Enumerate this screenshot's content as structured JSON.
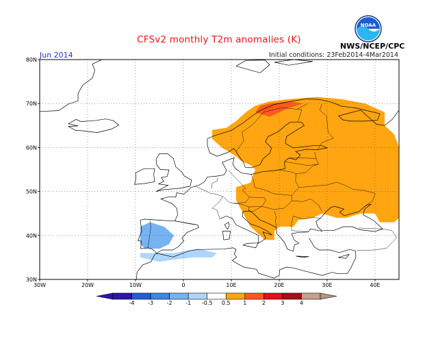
{
  "header": {
    "title": "CFSv2 monthly T2m anomalies (K)",
    "month": "Jun 2014",
    "initial_conditions": "Initial conditions: 23Feb2014-4Mar2014",
    "agency": "NWS/NCEP/CPC",
    "logo_text": "NOAA"
  },
  "map": {
    "lon_range": [
      -30,
      45
    ],
    "lat_range": [
      30,
      80
    ],
    "lon_ticks": [
      {
        "value": -30,
        "label": "30W"
      },
      {
        "value": -20,
        "label": "20W"
      },
      {
        "value": -10,
        "label": "10W"
      },
      {
        "value": 0,
        "label": "0"
      },
      {
        "value": 10,
        "label": "10E"
      },
      {
        "value": 20,
        "label": "20E"
      },
      {
        "value": 30,
        "label": "30E"
      },
      {
        "value": 40,
        "label": "40E"
      }
    ],
    "lat_ticks": [
      {
        "value": 30,
        "label": "30N"
      },
      {
        "value": 40,
        "label": "40N"
      },
      {
        "value": 50,
        "label": "50N"
      },
      {
        "value": 60,
        "label": "60N"
      },
      {
        "value": 70,
        "label": "70N"
      },
      {
        "value": 80,
        "label": "80N"
      }
    ]
  },
  "colorbar": {
    "levels": [
      "-4",
      "-3",
      "-2",
      "-1",
      "-0.5",
      "0.5",
      "1",
      "2",
      "3",
      "4"
    ],
    "colors": [
      "#2a16a8",
      "#1e5fd6",
      "#3d86e6",
      "#76b3f2",
      "#aed6fa",
      "#ffffff",
      "#ffa511",
      "#ff5a1e",
      "#e0121a",
      "#a80e16",
      "#c8a08c"
    ],
    "extend_left_color": "#2a16a8",
    "extend_right_color": "#b49680"
  },
  "anomaly_colors": {
    "warm_1": "#ffa511",
    "warm_2": "#ff5a1e",
    "warm_3": "#e0121a",
    "cool_1": "#76b3f2",
    "cool_2": "#aed6fa"
  }
}
